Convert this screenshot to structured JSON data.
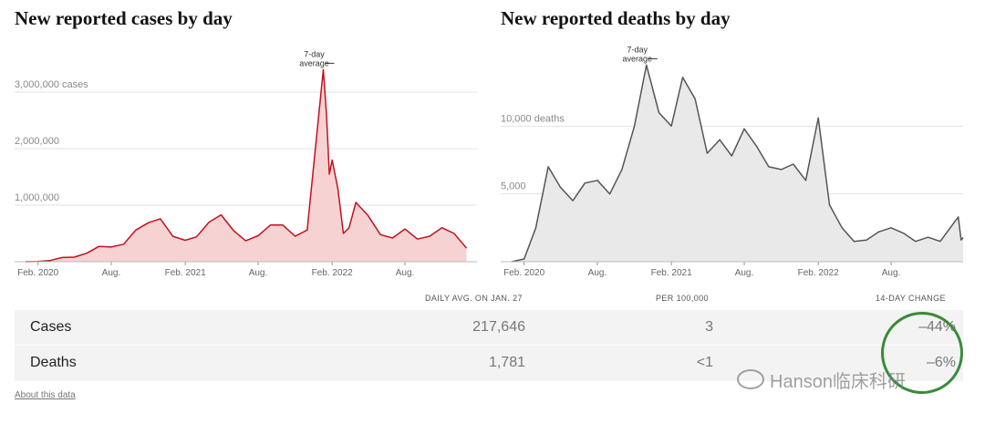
{
  "chart_data": [
    {
      "type": "area",
      "title": "New reported cases by day",
      "yunit": "cases",
      "ylim": [
        0,
        3600000
      ],
      "y_ticks": [
        "3,000,000 cases",
        "2,000,000",
        "1,000,000"
      ],
      "y_tick_values": [
        3000000,
        2000000,
        1000000
      ],
      "x_tick_labels": [
        "Feb. 2020",
        "Aug.",
        "Feb. 2021",
        "Aug.",
        "Feb. 2022",
        "Aug."
      ],
      "x_tick_dates": [
        "2020-02",
        "2020-08",
        "2021-02",
        "2021-08",
        "2022-02",
        "2022-08"
      ],
      "annotation": "7-day average",
      "color": "#c0121e",
      "fill": "#f6d2d2",
      "series": {
        "x": [
          "2020-01",
          "2020-02",
          "2020-03",
          "2020-04",
          "2020-05",
          "2020-06",
          "2020-07",
          "2020-08",
          "2020-09",
          "2020-10",
          "2020-11",
          "2020-12",
          "2021-01",
          "2021-02",
          "2021-03",
          "2021-04",
          "2021-05",
          "2021-06",
          "2021-07",
          "2021-08",
          "2021-09",
          "2021-10",
          "2021-11",
          "2021-12",
          "2022-01-10",
          "2022-01-18",
          "2022-01-25",
          "2022-02",
          "2022-02-15",
          "2022-03",
          "2022-03-15",
          "2022-04",
          "2022-05",
          "2022-06",
          "2022-07",
          "2022-08",
          "2022-09",
          "2022-10",
          "2022-11",
          "2022-12",
          "2023-01"
        ],
        "y": [
          0,
          5000,
          20000,
          75000,
          80000,
          150000,
          270000,
          260000,
          310000,
          560000,
          690000,
          760000,
          450000,
          380000,
          440000,
          700000,
          830000,
          550000,
          370000,
          460000,
          650000,
          650000,
          450000,
          560000,
          3400000,
          2600000,
          1550000,
          1800000,
          1300000,
          500000,
          600000,
          1050000,
          820000,
          480000,
          420000,
          580000,
          400000,
          450000,
          600000,
          500000,
          240000
        ]
      }
    },
    {
      "type": "area",
      "title": "New reported deaths by day",
      "yunit": "deaths",
      "ylim": [
        0,
        15000
      ],
      "y_ticks": [
        "10,000 deaths",
        "5,000"
      ],
      "y_tick_values": [
        10000,
        5000
      ],
      "x_tick_labels": [
        "Feb. 2020",
        "Aug.",
        "Feb. 2021",
        "Aug.",
        "Feb. 2022",
        "Aug."
      ],
      "x_tick_dates": [
        "2020-02",
        "2020-08",
        "2021-02",
        "2021-08",
        "2022-02",
        "2022-08"
      ],
      "annotation": "7-day average",
      "color": "#555555",
      "fill": "#e9e9e9",
      "series": {
        "x": [
          "2020-01",
          "2020-02",
          "2020-03",
          "2020-04",
          "2020-05",
          "2020-06",
          "2020-07",
          "2020-08",
          "2020-09",
          "2020-10",
          "2020-11",
          "2020-12",
          "2021-01",
          "2021-02",
          "2021-03",
          "2021-04",
          "2021-05",
          "2021-06",
          "2021-07",
          "2021-08",
          "2021-09",
          "2021-10",
          "2021-11",
          "2021-12",
          "2022-01",
          "2022-02",
          "2022-03",
          "2022-04",
          "2022-05",
          "2022-06",
          "2022-07",
          "2022-08",
          "2022-09",
          "2022-10",
          "2022-11",
          "2022-12",
          "2023-01-15",
          "2023-01-22",
          "2023-01-27"
        ],
        "y": [
          0,
          200,
          2500,
          7000,
          5500,
          4500,
          5800,
          6000,
          5000,
          6800,
          10000,
          14500,
          11000,
          10000,
          13600,
          12000,
          8000,
          9000,
          7800,
          9800,
          8500,
          7000,
          6800,
          7200,
          6000,
          10600,
          4200,
          2500,
          1500,
          1600,
          2200,
          2500,
          2100,
          1500,
          1800,
          1500,
          3300,
          1600,
          1781
        ]
      }
    }
  ],
  "table": {
    "headers": {
      "avg": "DAILY AVG. ON JAN. 27",
      "per": "PER 100,000",
      "change": "14-DAY CHANGE"
    },
    "rows": [
      {
        "label": "Cases",
        "avg": "217,646",
        "per": "3",
        "change": "–44%"
      },
      {
        "label": "Deaths",
        "avg": "1,781",
        "per": "<1",
        "change": "–6%"
      }
    ]
  },
  "footer": {
    "about_link": "About this data"
  },
  "watermark": {
    "text": "Hanson临床科研",
    "icon": "wechat-icon"
  }
}
